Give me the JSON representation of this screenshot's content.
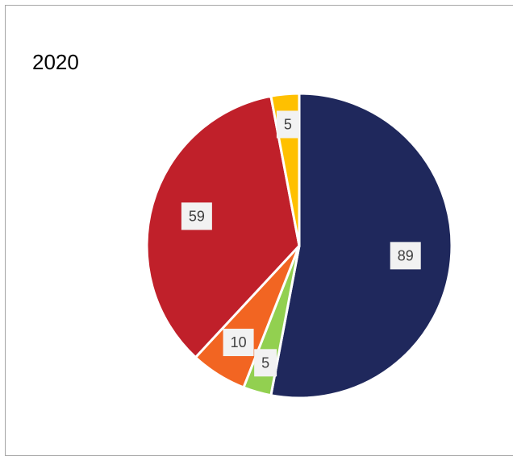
{
  "chart_data": {
    "type": "pie",
    "title": "2020",
    "categories": [
      "",
      "",
      "",
      "",
      ""
    ],
    "values": [
      89,
      5,
      10,
      59,
      5
    ],
    "colors": [
      "#1f285c",
      "#92d050",
      "#f26522",
      "#c0202a",
      "#ffc000"
    ],
    "data_labels": [
      "89",
      "5",
      "10",
      "59",
      "5"
    ],
    "start_angle_deg": 0,
    "direction": "clockwise",
    "legend": "none"
  }
}
